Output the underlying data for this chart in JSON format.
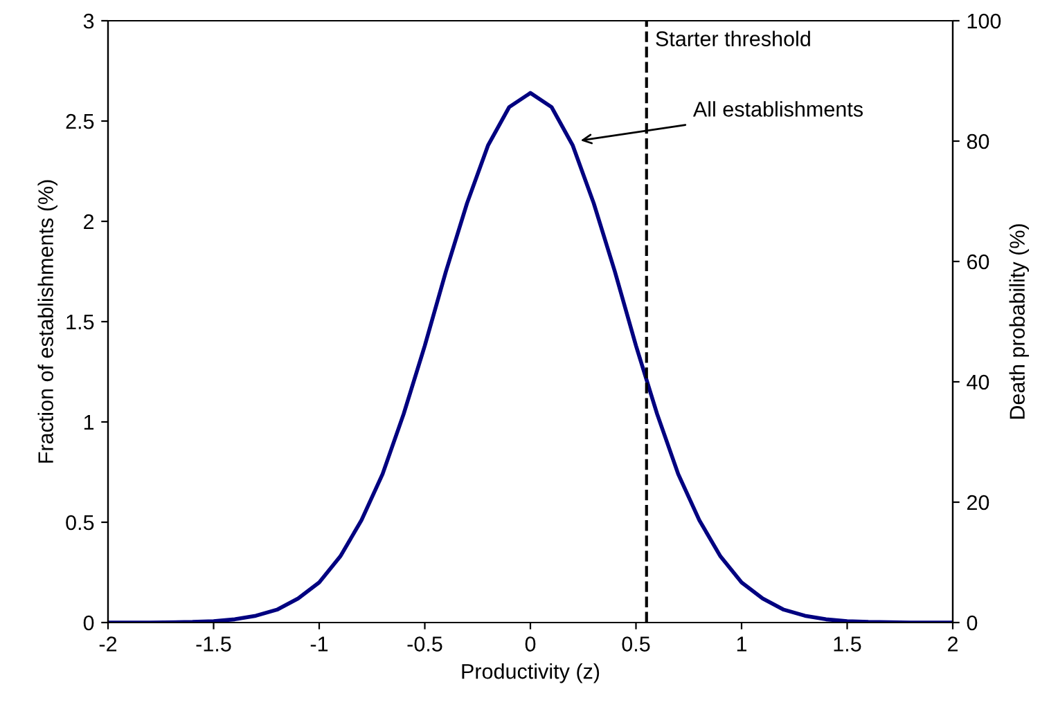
{
  "chart_data": {
    "type": "line",
    "xlabel": "Productivity (z)",
    "ylabel": "Fraction of establishments (%)",
    "y2label": "Death probability (%)",
    "x": [
      -2,
      -1.8,
      -1.6,
      -1.5,
      -1.4,
      -1.3,
      -1.2,
      -1.1,
      -1,
      -0.9,
      -0.8,
      -0.7,
      -0.6,
      -0.5,
      -0.4,
      -0.3,
      -0.2,
      -0.1,
      0,
      0.1,
      0.2,
      0.3,
      0.4,
      0.5,
      0.6,
      0.7,
      0.8,
      0.9,
      1,
      1.1,
      1.2,
      1.3,
      1.4,
      1.5,
      1.6,
      1.8,
      2
    ],
    "series": [
      {
        "color": "#000080",
        "values": [
          0,
          0,
          0.003,
          0.007,
          0.016,
          0.034,
          0.064,
          0.12,
          0.2,
          0.33,
          0.51,
          0.74,
          1.04,
          1.38,
          1.75,
          2.09,
          2.38,
          2.57,
          2.64,
          2.57,
          2.38,
          2.09,
          1.75,
          1.38,
          1.04,
          0.74,
          0.51,
          0.33,
          0.2,
          0.12,
          0.064,
          0.034,
          0.016,
          0.007,
          0.003,
          0,
          0
        ]
      }
    ],
    "xlim": [
      -2,
      2
    ],
    "xticks": [
      -2,
      -1.5,
      -1,
      -0.5,
      0,
      0.5,
      1,
      1.5,
      2
    ],
    "ylim": [
      0,
      3
    ],
    "yticks": [
      0,
      0.5,
      1,
      1.5,
      2,
      2.5,
      3
    ],
    "y2lim": [
      0,
      100
    ],
    "y2ticks": [
      0,
      20,
      40,
      60,
      80,
      100
    ],
    "ref_lines": [
      {
        "axis": "x",
        "value": 0.55,
        "label": "Starter threshold",
        "color": "#000000",
        "line_style": "dashed"
      }
    ],
    "annotations": [
      {
        "text": "All establishments",
        "x": 0.22,
        "y": 2.4
      }
    ],
    "grid": false,
    "legend": false,
    "marker": "none",
    "line_style": "solid"
  }
}
